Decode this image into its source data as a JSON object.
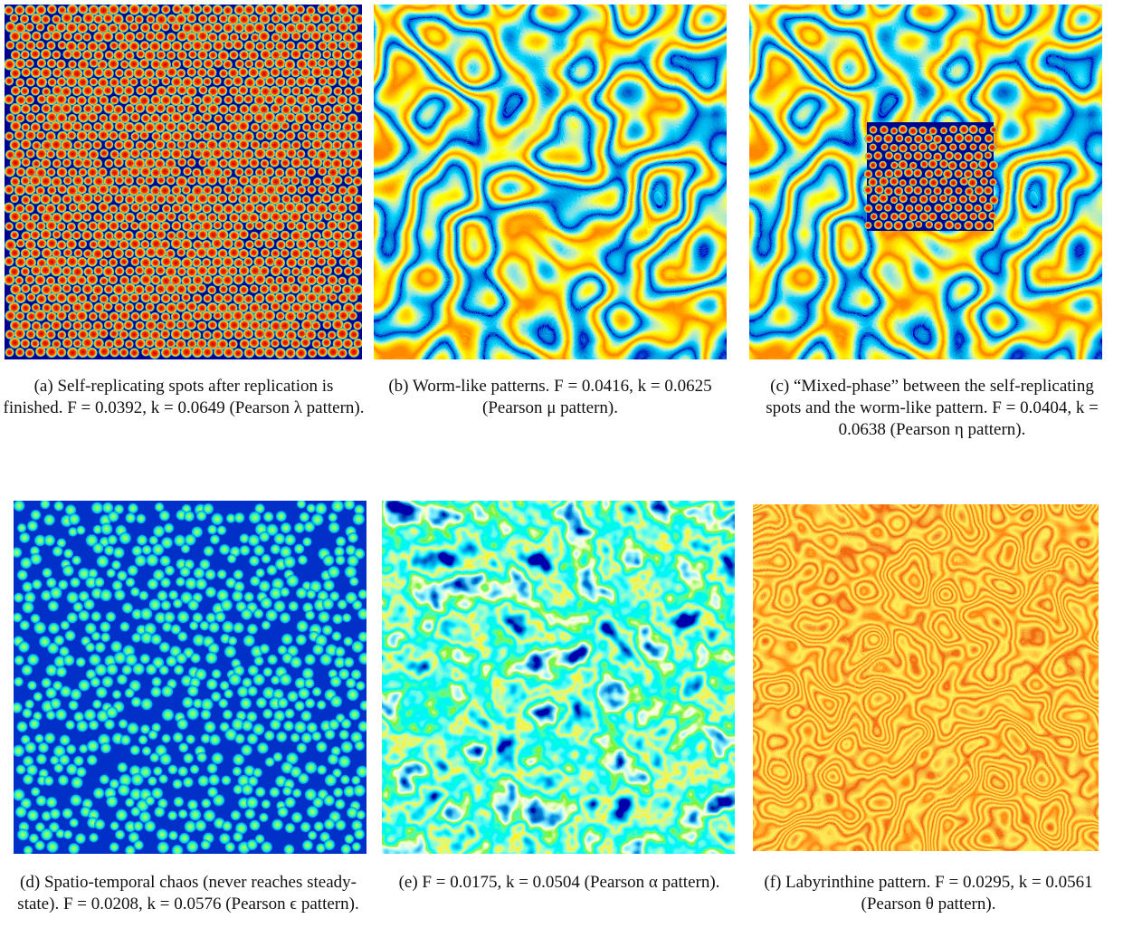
{
  "panels": [
    {
      "label": "(a)",
      "caption": "Self-replicating spots after replication is finished. F = 0.0392, k = 0.0649 (Pearson λ pattern)."
    },
    {
      "label": "(b)",
      "caption": "Worm-like patterns. F = 0.0416, k = 0.0625 (Pearson μ pattern)."
    },
    {
      "label": "(c)",
      "caption": "“Mixed-phase” between the self-replicating spots and the worm-like pattern. F = 0.0404, k = 0.0638 (Pearson η pattern)."
    },
    {
      "label": "(d)",
      "caption": "Spatio-temporal chaos (never reaches steady-state). F = 0.0208, k = 0.0576 (Pearson ϵ pattern)."
    },
    {
      "label": "(e)",
      "caption": "F = 0.0175, k = 0.0504 (Pearson α pattern)."
    },
    {
      "label": "(f)",
      "caption": "Labyrinthine pattern. F = 0.0295, k = 0.0561 (Pearson θ pattern)."
    }
  ]
}
